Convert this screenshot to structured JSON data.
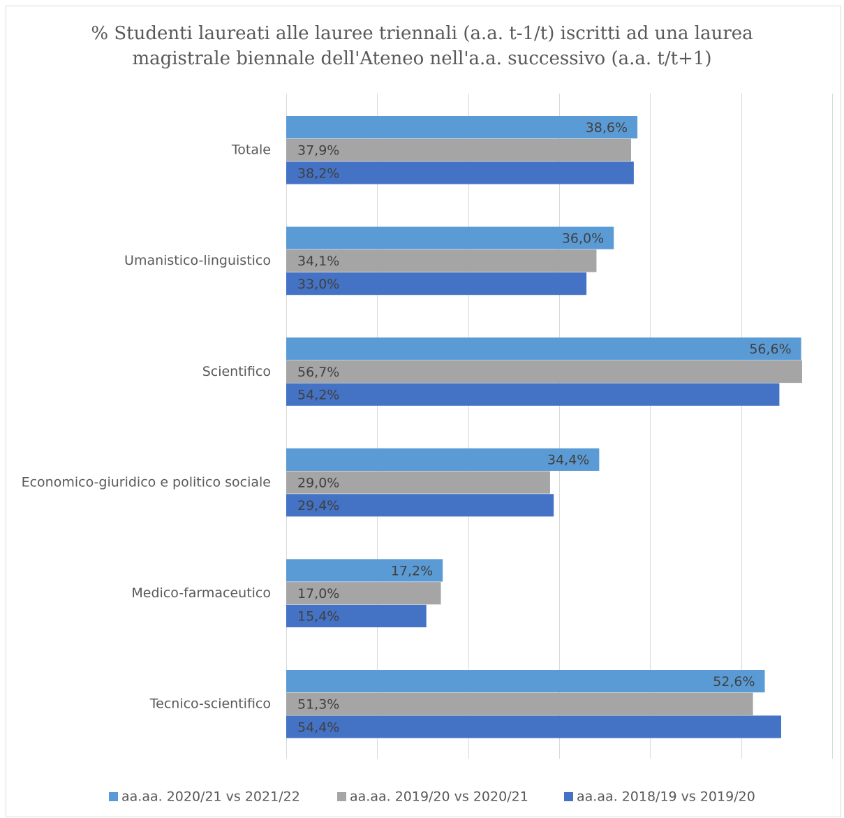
{
  "chart_data": {
    "type": "bar",
    "orientation": "horizontal",
    "title_lines": [
      "% Studenti laureati alle lauree triennali (a.a. t-1/t) iscritti ad una laurea",
      "magistrale biennale dell'Ateneo nell'a.a. successivo (a.a. t/t+1)"
    ],
    "categories": [
      "Totale",
      "Umanistico-linguistico",
      "Scientifico",
      "Economico-giuridico e politico sociale",
      "Medico-farmaceutico",
      "Tecnico-scientifico"
    ],
    "series": [
      {
        "name": "aa.aa. 2020/21 vs 2021/22",
        "color": "#5b9bd5",
        "values": [
          38.6,
          36.0,
          56.6,
          34.4,
          17.2,
          52.6
        ],
        "labels": [
          "38,6%",
          "36,0%",
          "56,6%",
          "34,4%",
          "17,2%",
          "52,6%"
        ],
        "label_position": "inside-end"
      },
      {
        "name": "aa.aa. 2019/20 vs 2020/21",
        "color": "#a5a5a5",
        "values": [
          37.9,
          34.1,
          56.7,
          29.0,
          17.0,
          51.3
        ],
        "labels": [
          "37,9%",
          "34,1%",
          "56,7%",
          "29,0%",
          "17,0%",
          "51,3%"
        ],
        "label_position": "inside-start"
      },
      {
        "name": "aa.aa. 2018/19 vs 2019/20",
        "color": "#4472c4",
        "values": [
          38.2,
          33.0,
          54.2,
          29.4,
          15.4,
          54.4
        ],
        "labels": [
          "38,2%",
          "33,0%",
          "54,2%",
          "29,4%",
          "15,4%",
          "54,4%"
        ],
        "label_position": "inside-start"
      }
    ],
    "xlim": [
      0,
      60
    ],
    "gridlines": true,
    "axis_tick_labels_shown": false,
    "legend_position": "bottom",
    "gridline_color": "#d9d9d9"
  }
}
